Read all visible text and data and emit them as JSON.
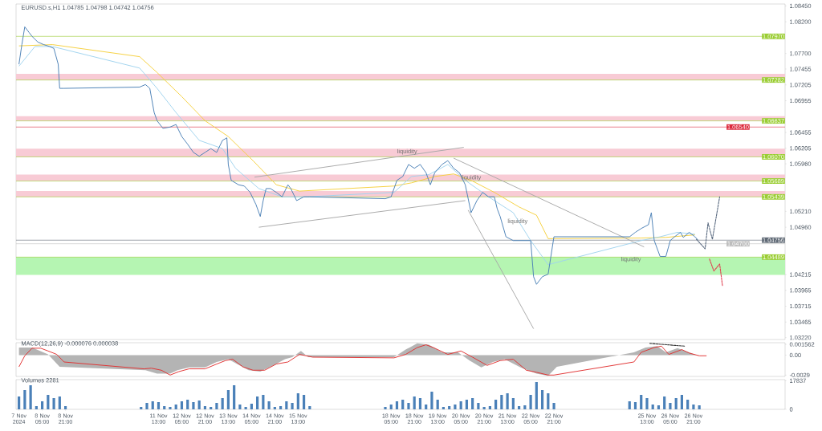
{
  "chart_data": [
    {
      "type": "line",
      "title": "EURUSD.s,H1  1.04785 1.04798 1.04742 1.04756",
      "xlim": [
        "2024-11-07T11:00",
        "2024-11-29T12:00"
      ],
      "ylim": [
        1.0319,
        1.0848
      ],
      "tick_labels": "y",
      "yticks": [
        {
          "value": 1.0845,
          "label": "1.08450"
        },
        {
          "value": 1.082,
          "label": "1.08200"
        },
        {
          "value": 1.077,
          "label": "1.07700"
        },
        {
          "value": 1.07455,
          "label": "1.07455"
        },
        {
          "value": 1.07205,
          "label": "1.07205"
        },
        {
          "value": 1.06955,
          "label": "1.06955"
        },
        {
          "value": 1.06455,
          "label": "1.06455"
        },
        {
          "value": 1.06205,
          "label": "1.06205"
        },
        {
          "value": 1.0596,
          "label": "1.05960"
        },
        {
          "value": 1.0521,
          "label": "1.05210"
        },
        {
          "value": 1.0496,
          "label": "1.04960"
        },
        {
          "value": 1.04215,
          "label": "1.04215"
        },
        {
          "value": 1.03965,
          "label": "1.03965"
        },
        {
          "value": 1.03715,
          "label": "1.03715"
        },
        {
          "value": 1.03465,
          "label": "1.03465"
        },
        {
          "value": 1.0322,
          "label": "1.03220"
        }
      ],
      "bands": [
        {
          "axis": "y",
          "from": 1.07282,
          "to": 1.0738,
          "color": "#f8cbd5"
        },
        {
          "axis": "y",
          "from": 1.06637,
          "to": 1.0671,
          "color": "#f8cbd5"
        },
        {
          "axis": "y",
          "from": 1.0607,
          "to": 1.062,
          "color": "#f8cbd5"
        },
        {
          "axis": "y",
          "from": 1.05689,
          "to": 1.0579,
          "color": "#f8cbd5"
        },
        {
          "axis": "y",
          "from": 1.05439,
          "to": 1.0553,
          "color": "#f8cbd5"
        },
        {
          "axis": "y",
          "from": 1.0421,
          "to": 1.04489,
          "color": "#b5f5b2"
        }
      ],
      "ref_lines": [
        {
          "axis": "y",
          "value": 1.0797,
          "label": "1.07970",
          "color": "#9acd32"
        },
        {
          "axis": "y",
          "value": 1.07282,
          "label": "1.07282",
          "color": "#9acd32"
        },
        {
          "axis": "y",
          "value": 1.06637,
          "label": "1.06637",
          "color": "#9acd32"
        },
        {
          "axis": "y",
          "value": 1.0654,
          "label": "1.06540",
          "color": "#dc2a3c"
        },
        {
          "axis": "y",
          "value": 1.0607,
          "label": "1.06070",
          "color": "#9acd32"
        },
        {
          "axis": "y",
          "value": 1.05689,
          "label": "1.05689",
          "color": "#9acd32"
        },
        {
          "axis": "y",
          "value": 1.05439,
          "label": "1.05439",
          "color": "#9acd32"
        },
        {
          "axis": "y",
          "value": 1.04756,
          "label": "1.04756",
          "color": "#5e6874"
        },
        {
          "axis": "y",
          "value": 1.047,
          "label": "1.04700",
          "color": "#bdbdbd"
        },
        {
          "axis": "y",
          "value": 1.04489,
          "label": "1.04489",
          "color": "#9acd32"
        }
      ],
      "annotations": [
        {
          "text": "liquidity",
          "x": "2024-11-18T16:00",
          "y": 1.0615
        },
        {
          "text": "liquidity",
          "x": "2024-11-20T12:00",
          "y": 1.0574
        },
        {
          "text": "liquidity",
          "x": "2024-11-21T20:00",
          "y": 1.0505
        },
        {
          "text": "liquidity",
          "x": "2024-11-25T02:00",
          "y": 1.0445
        }
      ],
      "series": [
        {
          "color": "#f5d03c",
          "x": [
            "2024-11-07T13:00",
            "2024-11-08T12:00",
            "2024-11-11T00:00",
            "2024-11-11T12:00",
            "2024-11-12T05:00",
            "2024-11-12T21:00",
            "2024-11-13T13:00",
            "2024-11-14T06:00",
            "2024-11-14T22:00",
            "2024-11-15T14:00",
            "2024-11-18T07:00",
            "2024-11-18T19:00",
            "2024-11-19T11:00",
            "2024-11-20T00:00",
            "2024-11-20T12:00",
            "2024-11-21T04:00",
            "2024-11-21T21:00",
            "2024-11-22T09:00",
            "2024-11-22T17:00",
            "2024-11-25T09:00",
            "2024-11-26T02:00",
            "2024-11-26T22:00"
          ],
          "values": [
            1.0782,
            1.0784,
            1.0765,
            1.074,
            1.0702,
            1.0664,
            1.0639,
            1.0601,
            1.0563,
            1.0553,
            1.0561,
            1.0566,
            1.0576,
            1.058,
            1.057,
            1.0551,
            1.0528,
            1.0515,
            1.0478,
            1.0479,
            1.048,
            1.0484
          ]
        },
        {
          "color": "#9fd3ee",
          "x": [
            "2024-11-07T13:00",
            "2024-11-08T00:00",
            "2024-11-08T12:00",
            "2024-11-11T00:00",
            "2024-11-11T12:00",
            "2024-11-12T01:00",
            "2024-11-12T17:00",
            "2024-11-13T09:00",
            "2024-11-13T18:00",
            "2024-11-14T10:00",
            "2024-11-15T02:00",
            "2024-11-15T19:00",
            "2024-11-18T07:00",
            "2024-11-18T19:00",
            "2024-11-19T07:00",
            "2024-11-19T20:00",
            "2024-11-20T08:00",
            "2024-11-21T00:00",
            "2024-11-21T17:00",
            "2024-11-22T05:00",
            "2024-11-22T17:00",
            "2024-11-25T09:00",
            "2024-11-25T22:00",
            "2024-11-26T10:00",
            "2024-11-26T22:00"
          ],
          "values": [
            1.075,
            1.0781,
            1.0781,
            1.0747,
            1.0715,
            1.0677,
            1.0633,
            1.062,
            1.0589,
            1.0557,
            1.0544,
            1.0544,
            1.0551,
            1.0576,
            1.0579,
            1.0595,
            1.057,
            1.0544,
            1.0519,
            1.0475,
            1.0437,
            1.0475,
            1.0481,
            1.0488,
            1.0485
          ]
        },
        {
          "color": "#a8a8a8",
          "x": [
            "2024-11-14T07:00",
            "2024-11-20T07:00"
          ],
          "values": [
            1.0575,
            1.0622
          ]
        },
        {
          "color": "#a8a8a8",
          "x": [
            "2024-11-14T10:00",
            "2024-11-20T08:00"
          ],
          "values": [
            1.0496,
            1.0538
          ]
        },
        {
          "color": "#a8a8a8",
          "x": [
            "2024-11-20T10:00",
            "2024-11-22T07:00"
          ],
          "values": [
            1.0523,
            1.0336
          ]
        },
        {
          "color": "#a8a8a8",
          "x": [
            "2024-11-20T00:00",
            "2024-11-25T11:00"
          ],
          "values": [
            1.0605,
            1.0465
          ]
        },
        {
          "color": "#4a7fb5",
          "x": [
            "2024-11-07T13:00",
            "2024-11-07T15:00",
            "2024-11-07T17:00",
            "2024-11-07T20:00",
            "2024-11-07T22:00",
            "2024-11-08T02:00",
            "2024-11-08T06:00",
            "2024-11-08T10:00",
            "2024-11-08T13:00",
            "2024-11-08T16:00",
            "2024-11-08T17:00",
            "2024-11-08T20:00",
            "2024-11-11T00:00",
            "2024-11-11T04:00",
            "2024-11-11T07:00",
            "2024-11-11T10:00",
            "2024-11-11T12:00",
            "2024-11-11T16:00",
            "2024-11-11T21:00",
            "2024-11-12T01:00",
            "2024-11-12T05:00",
            "2024-11-12T09:00",
            "2024-11-12T13:00",
            "2024-11-12T17:00",
            "2024-11-12T21:00",
            "2024-11-13T01:00",
            "2024-11-13T05:00",
            "2024-11-13T09:00",
            "2024-11-13T12:00",
            "2024-11-13T13:00",
            "2024-11-13T15:00",
            "2024-11-13T20:00",
            "2024-11-14T00:00",
            "2024-11-14T04:00",
            "2024-11-14T08:00",
            "2024-11-14T11:00",
            "2024-11-14T13:00",
            "2024-11-14T15:00",
            "2024-11-14T18:00",
            "2024-11-14T22:00",
            "2024-11-15T02:00",
            "2024-11-15T06:00",
            "2024-11-15T08:00",
            "2024-11-15T12:00",
            "2024-11-15T17:00",
            "2024-11-15T21:00",
            "2024-11-18T01:00",
            "2024-11-18T05:00",
            "2024-11-18T07:00",
            "2024-11-18T09:00",
            "2024-11-18T13:00",
            "2024-11-18T17:00",
            "2024-11-18T21:00",
            "2024-11-19T01:00",
            "2024-11-19T05:00",
            "2024-11-19T08:00",
            "2024-11-19T11:00",
            "2024-11-19T16:00",
            "2024-11-19T20:00",
            "2024-11-20T00:00",
            "2024-11-20T04:00",
            "2024-11-20T08:00",
            "2024-11-20T12:00",
            "2024-11-20T16:00",
            "2024-11-20T20:00",
            "2024-11-21T00:00",
            "2024-11-21T04:00",
            "2024-11-21T06:00",
            "2024-11-21T08:00",
            "2024-11-21T12:00",
            "2024-11-21T17:00",
            "2024-11-21T21:00",
            "2024-11-22T01:00",
            "2024-11-22T05:00",
            "2024-11-22T07:00",
            "2024-11-22T09:00",
            "2024-11-22T13:00",
            "2024-11-22T17:00",
            "2024-11-22T21:00",
            "2024-11-25T01:00",
            "2024-11-25T05:00",
            "2024-11-25T09:00",
            "2024-11-25T14:00",
            "2024-11-25T16:00",
            "2024-11-25T18:00",
            "2024-11-25T22:00",
            "2024-11-26T02:00",
            "2024-11-26T05:00",
            "2024-11-26T08:00",
            "2024-11-26T12:00",
            "2024-11-26T14:00",
            "2024-11-26T18:00",
            "2024-11-26T22:00",
            "2024-11-27T00:00"
          ],
          "values": [
            1.0753,
            1.0784,
            1.0812,
            1.0803,
            1.0797,
            1.0788,
            1.0784,
            1.0781,
            1.0778,
            1.0753,
            1.0715,
            1.0715,
            1.0717,
            1.0721,
            1.0715,
            1.0677,
            1.0664,
            1.0652,
            1.0654,
            1.0658,
            1.0639,
            1.0627,
            1.0614,
            1.0608,
            1.0614,
            1.062,
            1.0614,
            1.0633,
            1.0637,
            1.0595,
            1.057,
            1.0563,
            1.0561,
            1.0551,
            1.0532,
            1.0513,
            1.0538,
            1.0557,
            1.0557,
            1.0551,
            1.0544,
            1.0563,
            1.0557,
            1.0538,
            1.0544,
            1.0544,
            1.0541,
            1.0544,
            1.0557,
            1.057,
            1.0576,
            1.0595,
            1.0589,
            1.0595,
            1.0582,
            1.0563,
            1.0582,
            1.0595,
            1.0601,
            1.0589,
            1.0582,
            1.0563,
            1.0519,
            1.0538,
            1.0551,
            1.0544,
            1.0544,
            1.0525,
            1.0513,
            1.0481,
            1.0475,
            1.0475,
            1.0475,
            1.0475,
            1.0418,
            1.0406,
            1.0418,
            1.0422,
            1.0481,
            1.0481,
            1.0488,
            1.0494,
            1.05,
            1.0519,
            1.0475,
            1.045,
            1.045,
            1.0475,
            1.0481,
            1.0488,
            1.048,
            1.0488,
            1.0481,
            1.0476
          ]
        },
        {
          "color": "#5a6a80",
          "line_style": "dashed",
          "x": [
            "2024-11-26T23:00",
            "2024-11-27T05:00",
            "2024-11-27T07:00",
            "2024-11-27T10:00",
            "2024-11-27T15:00"
          ],
          "values": [
            1.0477,
            1.0462,
            1.0503,
            1.0477,
            1.0544
          ]
        },
        {
          "color": "#e04050",
          "line_style": "dashed",
          "x": [
            "2024-11-27T08:00",
            "2024-11-27T11:00",
            "2024-11-27T15:00",
            "2024-11-27T17:00"
          ],
          "values": [
            1.0446,
            1.0427,
            1.0438,
            1.0403
          ]
        }
      ]
    },
    {
      "type": "line",
      "title": "MACD(12,26,9) -0.000076 0.000038",
      "xlim": [
        "2024-11-07T11:00",
        "2024-11-29T12:00"
      ],
      "ylim": [
        -0.0031,
        0.0018
      ],
      "tick_labels": "y",
      "yticks": [
        {
          "value": 0.001562,
          "label": "0.001562"
        },
        {
          "value": 0,
          "label": "0.00"
        },
        {
          "value": -0.0029,
          "label": "-0.0029"
        }
      ],
      "series": [
        {
          "type": "area",
          "color": "#b4b4b4",
          "x": [
            "2024-11-07T13:00",
            "2024-11-07T22:00",
            "2024-11-08T09:00",
            "2024-11-08T17:00",
            "2024-11-11T04:00",
            "2024-11-11T12:00",
            "2024-11-11T21:00",
            "2024-11-12T02:00",
            "2024-11-12T10:00",
            "2024-11-12T21:00",
            "2024-11-13T05:00",
            "2024-11-13T13:00",
            "2024-11-13T19:00",
            "2024-11-14T03:00",
            "2024-11-14T11:00",
            "2024-11-14T20:00",
            "2024-11-15T04:00",
            "2024-11-15T09:00",
            "2024-11-15T15:00",
            "2024-11-15T20:00",
            "2024-11-18T07:00",
            "2024-11-18T15:00",
            "2024-11-18T23:00",
            "2024-11-19T07:00",
            "2024-11-19T16:00",
            "2024-11-20T03:00",
            "2024-11-20T11:00",
            "2024-11-20T19:00",
            "2024-11-21T03:00",
            "2024-11-21T11:00",
            "2024-11-21T22:00",
            "2024-11-22T09:00",
            "2024-11-22T17:00",
            "2024-11-22T23:00",
            "2024-11-25T04:00",
            "2024-11-25T12:00",
            "2024-11-25T20:00",
            "2024-11-26T02:00",
            "2024-11-26T10:00",
            "2024-11-26T18:00",
            "2024-11-27T00:00"
          ],
          "values": [
            0.0011,
            0.0011,
            0.0001,
            -0.0017,
            -0.0022,
            -0.0027,
            -0.0027,
            -0.0022,
            -0.0018,
            -0.0018,
            -0.001,
            -0.0006,
            -0.0013,
            -0.0022,
            -0.0024,
            -0.0015,
            -0.0006,
            -0.0003,
            0.0006,
            -0.0003,
            -0.0003,
            0.0008,
            0.0017,
            0.0015,
            0.0004,
            0.0004,
            -0.0008,
            -0.0018,
            -0.001,
            -0.0006,
            -0.0018,
            -0.0027,
            -0.003,
            -0.0017,
            0.0004,
            0.0011,
            0.0013,
            0.0004,
            0.001,
            0.0004,
            -0.0001
          ]
        },
        {
          "color": "#e03030",
          "x": [
            "2024-11-07T13:00",
            "2024-11-07T17:00",
            "2024-11-07T22:00",
            "2024-11-08T04:00",
            "2024-11-08T09:00",
            "2024-11-08T15:00",
            "2024-11-08T20:00",
            "2024-11-11T03:00",
            "2024-11-11T08:00",
            "2024-11-11T15:00",
            "2024-11-11T21:00",
            "2024-11-12T03:00",
            "2024-11-12T10:00",
            "2024-11-12T21:00",
            "2024-11-13T05:00",
            "2024-11-13T11:00",
            "2024-11-13T16:00",
            "2024-11-13T23:00",
            "2024-11-14T06:00",
            "2024-11-14T14:00",
            "2024-11-14T22:00",
            "2024-11-15T06:00",
            "2024-11-15T14:00",
            "2024-11-15T23:00",
            "2024-11-18T07:00",
            "2024-11-18T15:00",
            "2024-11-18T23:00",
            "2024-11-19T05:00",
            "2024-11-19T10:00",
            "2024-11-19T20:00",
            "2024-11-20T05:00",
            "2024-11-20T13:00",
            "2024-11-20T23:00",
            "2024-11-21T08:00",
            "2024-11-21T17:00",
            "2024-11-22T02:00",
            "2024-11-22T09:00",
            "2024-11-22T17:00",
            "2024-11-22T21:00",
            "2024-11-25T04:00",
            "2024-11-25T09:00",
            "2024-11-25T18:00",
            "2024-11-25T23:00",
            "2024-11-26T04:00",
            "2024-11-26T13:00",
            "2024-11-26T18:00",
            "2024-11-27T01:00",
            "2024-11-27T06:00"
          ],
          "values": [
            -0.0017,
            -0.0001,
            0.001,
            0.001,
            0.0006,
            0.0001,
            -0.001,
            -0.002,
            -0.0019,
            -0.0022,
            -0.0029,
            -0.0024,
            -0.002,
            -0.002,
            -0.0013,
            -0.0008,
            -0.0006,
            -0.0017,
            -0.0022,
            -0.0022,
            -0.0013,
            -0.001,
            0.0001,
            -0.0003,
            -0.0004,
            0.0001,
            0.0011,
            0.0015,
            0.0011,
            0.0001,
            0.0006,
            -0.0003,
            -0.0015,
            -0.0008,
            -0.0006,
            -0.0022,
            -0.0025,
            -0.0029,
            -0.0029,
            -0.001,
            0.0004,
            0.0011,
            0.0013,
            0.0001,
            0.0008,
            0.0003,
            -0.0001,
            -0.0001
          ]
        },
        {
          "color": "#303030",
          "line_style": "dashed",
          "x": [
            "2024-11-25T15:00",
            "2024-11-26T15:00"
          ],
          "values": [
            0.0017,
            0.0013
          ]
        }
      ]
    },
    {
      "type": "bar",
      "title": "Volumes 2281",
      "xlim": [
        "2024-11-07T11:00",
        "2024-11-29T12:00"
      ],
      "ylim": [
        0,
        18500
      ],
      "yticks": [
        0,
        17837
      ],
      "color": "#4a80b8",
      "xticks": [
        {
          "value": "2024-11-07T13:00",
          "label": "7 Nov 2024"
        },
        {
          "value": "2024-11-08T05:00",
          "label": "8 Nov 05:00"
        },
        {
          "value": "2024-11-08T21:00",
          "label": "8 Nov 21:00"
        },
        {
          "value": "2024-11-11T13:00",
          "label": "11 Nov 13:00"
        },
        {
          "value": "2024-11-12T05:00",
          "label": "12 Nov 05:00"
        },
        {
          "value": "2024-11-12T21:00",
          "label": "12 Nov 21:00"
        },
        {
          "value": "2024-11-13T13:00",
          "label": "13 Nov 13:00"
        },
        {
          "value": "2024-11-14T05:00",
          "label": "14 Nov 05:00"
        },
        {
          "value": "2024-11-14T21:00",
          "label": "14 Nov 21:00"
        },
        {
          "value": "2024-11-15T13:00",
          "label": "15 Nov 13:00"
        },
        {
          "value": "2024-11-18T05:00",
          "label": "18 Nov 05:00"
        },
        {
          "value": "2024-11-18T21:00",
          "label": "18 Nov 21:00"
        },
        {
          "value": "2024-11-19T13:00",
          "label": "19 Nov 13:00"
        },
        {
          "value": "2024-11-20T05:00",
          "label": "20 Nov 05:00"
        },
        {
          "value": "2024-11-20T21:00",
          "label": "20 Nov 21:00"
        },
        {
          "value": "2024-11-21T13:00",
          "label": "21 Nov 13:00"
        },
        {
          "value": "2024-11-22T05:00",
          "label": "22 Nov 05:00"
        },
        {
          "value": "2024-11-22T21:00",
          "label": "22 Nov 21:00"
        },
        {
          "value": "2024-11-25T13:00",
          "label": "25 Nov 13:00"
        },
        {
          "value": "2024-11-26T05:00",
          "label": "26 Nov 05:00"
        },
        {
          "value": "2024-11-26T21:00",
          "label": "26 Nov 21:00"
        }
      ],
      "x": [
        "2024-11-07T13:00",
        "2024-11-07T17:00",
        "2024-11-07T21:00",
        "2024-11-08T01:00",
        "2024-11-08T05:00",
        "2024-11-08T09:00",
        "2024-11-08T13:00",
        "2024-11-08T17:00",
        "2024-11-08T21:00",
        "2024-11-11T01:00",
        "2024-11-11T05:00",
        "2024-11-11T09:00",
        "2024-11-11T13:00",
        "2024-11-11T17:00",
        "2024-11-11T21:00",
        "2024-11-12T01:00",
        "2024-11-12T05:00",
        "2024-11-12T09:00",
        "2024-11-12T13:00",
        "2024-11-12T17:00",
        "2024-11-12T21:00",
        "2024-11-13T01:00",
        "2024-11-13T05:00",
        "2024-11-13T09:00",
        "2024-11-13T13:00",
        "2024-11-13T17:00",
        "2024-11-13T21:00",
        "2024-11-14T01:00",
        "2024-11-14T05:00",
        "2024-11-14T09:00",
        "2024-11-14T13:00",
        "2024-11-14T17:00",
        "2024-11-14T21:00",
        "2024-11-15T01:00",
        "2024-11-15T05:00",
        "2024-11-15T09:00",
        "2024-11-15T13:00",
        "2024-11-15T17:00",
        "2024-11-15T21:00",
        "2024-11-18T01:00",
        "2024-11-18T05:00",
        "2024-11-18T09:00",
        "2024-11-18T13:00",
        "2024-11-18T17:00",
        "2024-11-18T21:00",
        "2024-11-19T01:00",
        "2024-11-19T05:00",
        "2024-11-19T09:00",
        "2024-11-19T13:00",
        "2024-11-19T17:00",
        "2024-11-19T21:00",
        "2024-11-20T01:00",
        "2024-11-20T05:00",
        "2024-11-20T09:00",
        "2024-11-20T13:00",
        "2024-11-20T17:00",
        "2024-11-20T21:00",
        "2024-11-21T01:00",
        "2024-11-21T05:00",
        "2024-11-21T09:00",
        "2024-11-21T13:00",
        "2024-11-21T17:00",
        "2024-11-21T21:00",
        "2024-11-22T01:00",
        "2024-11-22T05:00",
        "2024-11-22T09:00",
        "2024-11-22T13:00",
        "2024-11-22T17:00",
        "2024-11-22T21:00",
        "2024-11-25T01:00",
        "2024-11-25T05:00",
        "2024-11-25T09:00",
        "2024-11-25T13:00",
        "2024-11-25T17:00",
        "2024-11-25T21:00",
        "2024-11-26T01:00",
        "2024-11-26T05:00",
        "2024-11-26T09:00",
        "2024-11-26T13:00",
        "2024-11-26T17:00",
        "2024-11-26T21:00",
        "2024-11-27T01:00"
      ],
      "values": [
        8000,
        12000,
        15000,
        2000,
        5000,
        9000,
        7000,
        8000,
        2000,
        1500,
        4000,
        5000,
        4500,
        2000,
        1500,
        3000,
        5000,
        6000,
        4500,
        5500,
        2000,
        1500,
        4000,
        7000,
        12000,
        15000,
        3000,
        1500,
        3500,
        8000,
        9000,
        5000,
        1500,
        2000,
        5000,
        4000,
        10000,
        9000,
        2000,
        1500,
        3000,
        5000,
        6000,
        4000,
        8000,
        7000,
        3000,
        11000,
        6000,
        1500,
        2000,
        3000,
        5000,
        6000,
        7000,
        4000,
        1500,
        2000,
        6000,
        9000,
        10000,
        7000,
        2000,
        2500,
        9000,
        17000,
        12000,
        10000,
        4000,
        5000,
        4500,
        9000,
        7000,
        3000,
        2500,
        8000,
        4000,
        7000,
        9000,
        6000,
        3000,
        2500
      ]
    }
  ]
}
